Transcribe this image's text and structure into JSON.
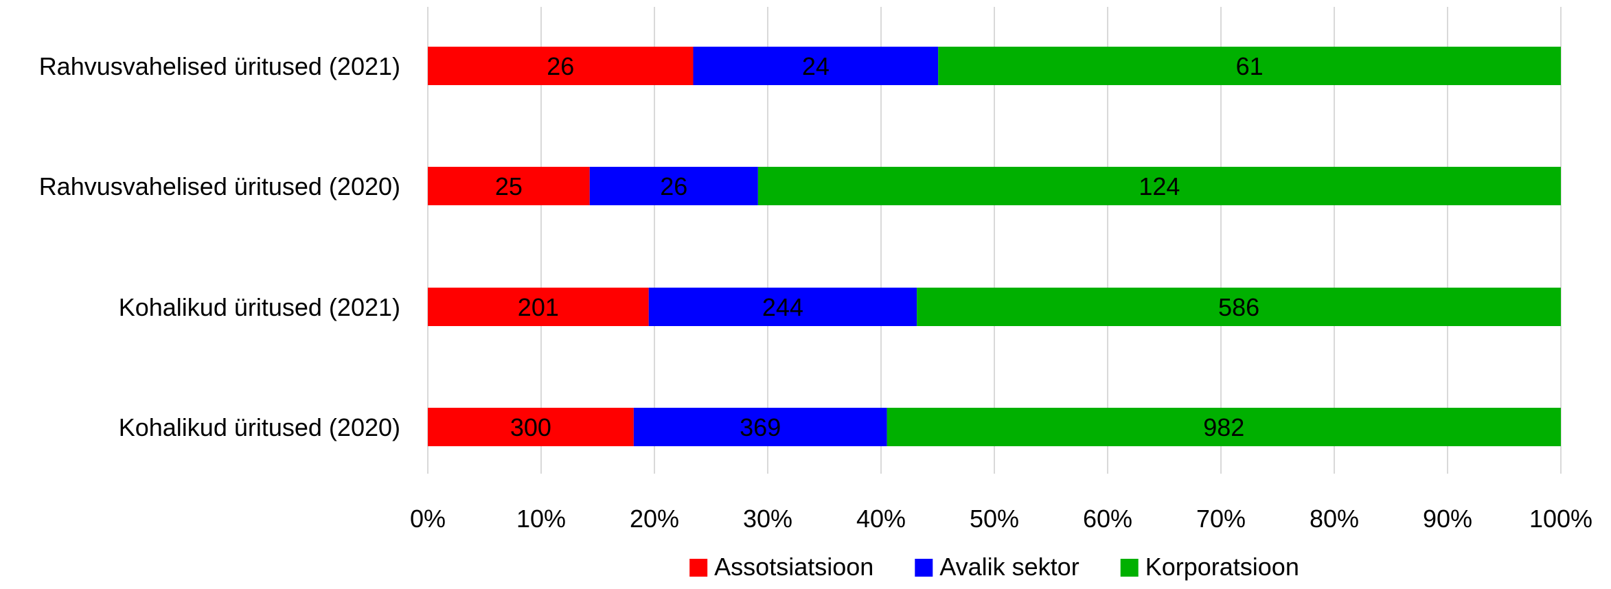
{
  "chart_data": {
    "type": "bar",
    "orientation": "horizontal",
    "stacked": "percent",
    "title": "",
    "xlabel": "",
    "ylabel": "",
    "xlim": [
      0,
      100
    ],
    "ticks": [
      "0%",
      "10%",
      "20%",
      "30%",
      "40%",
      "50%",
      "60%",
      "70%",
      "80%",
      "90%",
      "100%"
    ],
    "grid": true,
    "legend_position": "bottom",
    "categories": [
      "Rahvusvahelised üritused (2021)",
      "Rahvusvahelised üritused (2020)",
      "Kohalikud üritused (2021)",
      "Kohalikud üritused (2020)"
    ],
    "series": [
      {
        "name": "Assotsiatsioon",
        "color": "#ff0000",
        "values": [
          26,
          25,
          201,
          300
        ]
      },
      {
        "name": "Avalik sektor",
        "color": "#0000ff",
        "values": [
          24,
          26,
          244,
          369
        ]
      },
      {
        "name": "Korporatsioon",
        "color": "#00b000",
        "values": [
          61,
          124,
          586,
          982
        ]
      }
    ]
  }
}
